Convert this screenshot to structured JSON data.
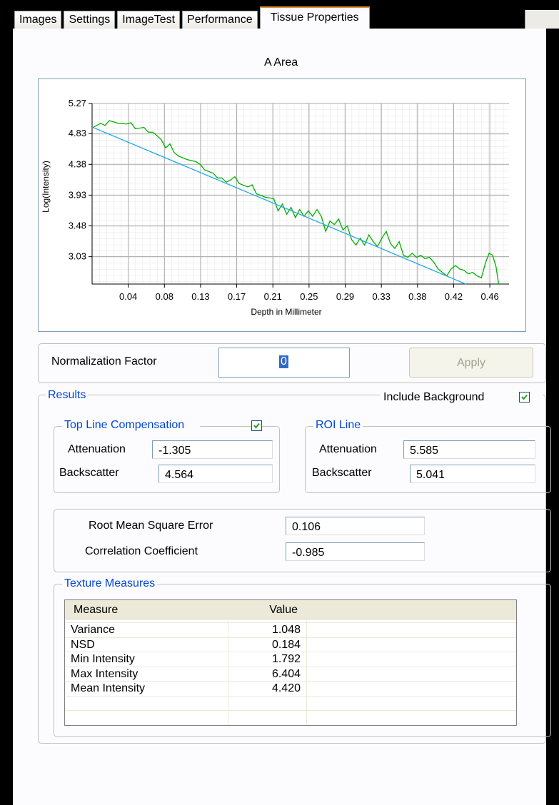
{
  "tabs": {
    "items": [
      "Images",
      "Settings",
      "ImageTest",
      "Performance",
      "Tissue Properties"
    ],
    "selected": 4
  },
  "chart_data": {
    "type": "line",
    "title": "A Area",
    "xlabel": "Depth in Millimeter",
    "ylabel": "Log(Intensity)",
    "xlim": [
      0,
      0.482
    ],
    "ylim": [
      2.63,
      5.27
    ],
    "xticks": [
      {
        "value": 0.0418,
        "label": "0.04"
      },
      {
        "value": 0.0836,
        "label": "0.08"
      },
      {
        "value": 0.1254,
        "label": "0.13"
      },
      {
        "value": 0.1672,
        "label": "0.17"
      },
      {
        "value": 0.209,
        "label": "0.21"
      },
      {
        "value": 0.2508,
        "label": "0.25"
      },
      {
        "value": 0.2926,
        "label": "0.29"
      },
      {
        "value": 0.3344,
        "label": "0.33"
      },
      {
        "value": 0.3762,
        "label": "0.38"
      },
      {
        "value": 0.418,
        "label": "0.42"
      },
      {
        "value": 0.4598,
        "label": "0.46"
      }
    ],
    "yticks": [
      3.03,
      3.48,
      3.93,
      4.38,
      4.83,
      5.27
    ],
    "grid": true,
    "series": [
      {
        "color": "#00b000",
        "x": [
          0.001,
          0.01,
          0.015,
          0.02,
          0.03,
          0.04,
          0.045,
          0.05,
          0.06,
          0.065,
          0.07,
          0.075,
          0.08,
          0.085,
          0.09,
          0.095,
          0.1,
          0.11,
          0.12,
          0.125,
          0.13,
          0.14,
          0.145,
          0.15,
          0.155,
          0.16,
          0.165,
          0.17,
          0.18,
          0.185,
          0.19,
          0.2,
          0.21,
          0.215,
          0.22,
          0.225,
          0.23,
          0.235,
          0.24,
          0.245,
          0.25,
          0.255,
          0.26,
          0.265,
          0.27,
          0.275,
          0.28,
          0.285,
          0.29,
          0.295,
          0.3,
          0.305,
          0.31,
          0.315,
          0.32,
          0.325,
          0.33,
          0.335,
          0.34,
          0.345,
          0.35,
          0.355,
          0.36,
          0.365,
          0.37,
          0.375,
          0.38,
          0.385,
          0.39,
          0.395,
          0.4,
          0.405,
          0.41,
          0.415,
          0.42,
          0.425,
          0.43,
          0.435,
          0.44,
          0.445,
          0.45,
          0.455,
          0.459,
          0.463,
          0.467,
          0.47
        ],
        "values": [
          4.92,
          4.98,
          4.95,
          5.02,
          4.98,
          4.97,
          4.99,
          4.9,
          4.92,
          4.85,
          4.85,
          4.8,
          4.74,
          4.62,
          4.68,
          4.55,
          4.5,
          4.45,
          4.42,
          4.38,
          4.3,
          4.25,
          4.18,
          4.18,
          4.12,
          4.15,
          4.2,
          4.1,
          4.05,
          4.08,
          3.95,
          3.9,
          3.88,
          3.7,
          3.8,
          3.65,
          3.75,
          3.6,
          3.72,
          3.62,
          3.7,
          3.62,
          3.72,
          3.62,
          3.4,
          3.55,
          3.5,
          3.58,
          3.42,
          3.48,
          3.28,
          3.2,
          3.3,
          3.2,
          3.35,
          3.25,
          3.18,
          3.3,
          3.4,
          3.22,
          3.15,
          3.25,
          3.05,
          3.02,
          3.08,
          3.02,
          3.05,
          3,
          3.02,
          2.95,
          2.85,
          2.8,
          2.75,
          2.85,
          2.9,
          2.85,
          2.83,
          2.78,
          2.8,
          2.75,
          2.72,
          2.95,
          3.08,
          3.05,
          2.88,
          2.63
        ]
      },
      {
        "color": "#1ea7e8",
        "x": [
          0.001,
          0.432
        ],
        "values": [
          4.92,
          2.63
        ]
      }
    ]
  },
  "normalization": {
    "label": "Normalization Factor",
    "value": "0",
    "button": "Apply"
  },
  "results": {
    "title": "Results",
    "include_background": {
      "label": "Include Background",
      "checked": true
    },
    "top_line": {
      "title": "Top Line Compensation",
      "checked": true,
      "attenuation_label": "Attenuation",
      "attenuation": "-1.305",
      "backscatter_label": "Backscatter",
      "backscatter": "4.564"
    },
    "roi_line": {
      "title": "ROI Line",
      "attenuation_label": "Attenuation",
      "attenuation": "5.585",
      "backscatter_label": "Backscatter",
      "backscatter": "5.041"
    },
    "fit": {
      "rmse_label": "Root Mean Square Error",
      "rmse": "0.106",
      "correlation_label": "Correlation Coefficient",
      "correlation": "-0.985"
    },
    "texture": {
      "title": "Texture Measures",
      "columns": [
        "Measure",
        "Value"
      ],
      "rows": [
        [
          "Variance",
          "1.048"
        ],
        [
          "NSD",
          "0.184"
        ],
        [
          "Min Intensity",
          "1.792"
        ],
        [
          "Max Intensity",
          "6.404"
        ],
        [
          "Mean Intensity",
          "4.420"
        ]
      ]
    }
  }
}
